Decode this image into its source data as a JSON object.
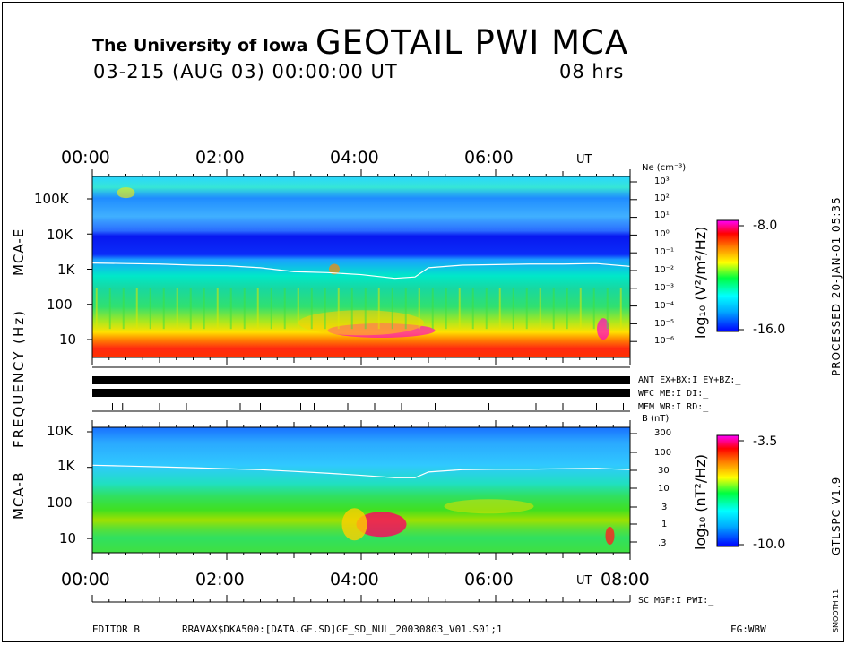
{
  "header": {
    "institution": "The University of Iowa",
    "title": "GEOTAIL PWI MCA",
    "date_line": "03-215 (AUG 03) 00:00:00 UT",
    "duration": "08 hrs"
  },
  "top_time_ticks": [
    "00:00",
    "02:00",
    "04:00",
    "06:00"
  ],
  "top_time_unit": "UT",
  "bottom_time_ticks": [
    "00:00",
    "02:00",
    "04:00",
    "06:00",
    "08:00"
  ],
  "bottom_time_unit": "UT",
  "y_axis_label": "FREQUENCY (Hz)",
  "panels": {
    "mca_e": {
      "label": "MCA-E",
      "freq_ticks": [
        "100K",
        "10K",
        "1K",
        "100",
        "10"
      ],
      "ne_label": "Ne (cm⁻³)",
      "ne_ticks": [
        "10³",
        "10²",
        "10¹",
        "10⁰",
        "10⁻¹",
        "10⁻²",
        "10⁻³",
        "10⁻⁴",
        "10⁻⁵",
        "10⁻⁶"
      ],
      "colorbar": {
        "max": "-8.0",
        "min": "-16.0",
        "unit": "log₁₀ (V²/m²/Hz)"
      }
    },
    "mca_b": {
      "label": "MCA-B",
      "freq_ticks": [
        "10K",
        "1K",
        "100",
        "10"
      ],
      "b_label": "B (nT)",
      "b_ticks": [
        "300",
        "100",
        "30",
        "10",
        "3",
        "1",
        ".3"
      ],
      "colorbar": {
        "max": "-3.5",
        "min": "-10.0",
        "unit": "log₁₀ (nT²/Hz)"
      }
    }
  },
  "status": {
    "ant": "ANT EX+BX:I  EY+BZ:_",
    "wfc": "WFC ME:I     DI:_",
    "mem": "MEM WR:I     RD:_",
    "sc": "SC MGF:I   PWI:_"
  },
  "side": {
    "processed": "PROCESSED 20-JAN-01  05:35",
    "version": "GTLSPC  V1.9",
    "smooth": "SMOOTH 11"
  },
  "footer": {
    "editor": "EDITOR B",
    "path": "RRAVAX$DKA500:[DATA.GE.SD]GE_SD_NUL_20030803_V01.S01;1",
    "fg": "FG:WBW"
  },
  "chart_data": [
    {
      "type": "heatmap",
      "title": "MCA-E",
      "xlabel": "UT",
      "ylabel": "FREQUENCY (Hz)",
      "x_range_hours": [
        0,
        8
      ],
      "y_scale": "log",
      "y_ticks": [
        100000,
        10000,
        1000,
        100,
        10
      ],
      "color_range": [
        -16.0,
        -8.0
      ],
      "color_unit": "log10 (V^2/m^2/Hz)",
      "plasma_freq_line_hz": {
        "x_hours": [
          0,
          0.5,
          1,
          1.5,
          2,
          2.5,
          3,
          3.5,
          4,
          4.5,
          4.8,
          5,
          5.5,
          6,
          6.5,
          7,
          7.5,
          8
        ],
        "y": [
          1500,
          1450,
          1400,
          1300,
          1250,
          1100,
          850,
          800,
          700,
          550,
          600,
          1100,
          1300,
          1350,
          1400,
          1400,
          1450,
          1200
        ]
      }
    },
    {
      "type": "heatmap",
      "title": "MCA-B",
      "xlabel": "UT",
      "ylabel": "FREQUENCY (Hz)",
      "x_range_hours": [
        0,
        8
      ],
      "y_scale": "log",
      "y_ticks": [
        10000,
        1000,
        100,
        10
      ],
      "color_range": [
        -10.0,
        -3.5
      ],
      "color_unit": "log10 (nT^2/Hz)",
      "b_field_line": {
        "x_hours": [
          0,
          0.5,
          1,
          1.5,
          2,
          2.5,
          3,
          3.5,
          4,
          4.5,
          4.8,
          5,
          5.5,
          6,
          6.5,
          7,
          7.5,
          8
        ],
        "y_nT": [
          40,
          38,
          36,
          34,
          32,
          30,
          27,
          24,
          21,
          18,
          18,
          26,
          30,
          31,
          31,
          32,
          33,
          30
        ]
      }
    }
  ]
}
